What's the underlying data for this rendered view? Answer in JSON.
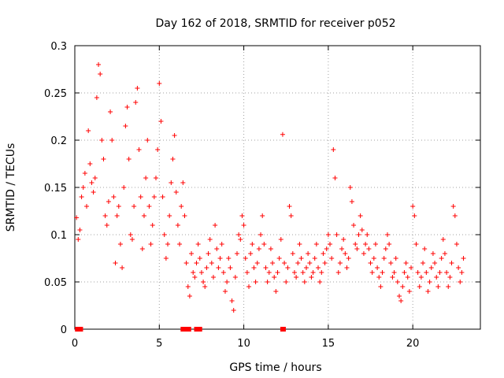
{
  "chart_data": {
    "type": "scatter",
    "title": "Day 162 of 2018, SRMTID for receiver p052",
    "xlabel": "GPS time / hours",
    "ylabel": "SRMTID / TECUs",
    "xlim": [
      0,
      24
    ],
    "ylim": [
      0,
      0.3
    ],
    "xticks": [
      0,
      5,
      10,
      15,
      20
    ],
    "yticks": [
      0,
      0.05,
      0.1,
      0.15,
      0.2,
      0.25,
      0.3
    ],
    "xtick_labels": [
      "0",
      "5",
      "10",
      "15",
      "20"
    ],
    "ytick_labels": [
      "0",
      "0.05",
      "0.1",
      "0.15",
      "0.2",
      "0.25",
      "0.3"
    ],
    "grid": true,
    "legend": "none",
    "marker": "plus",
    "color": "#ff0000",
    "series": [
      {
        "name": "SRMTID",
        "points": [
          [
            0.1,
            0.118
          ],
          [
            0.2,
            0.095
          ],
          [
            0.3,
            0.105
          ],
          [
            0.4,
            0.14
          ],
          [
            0.5,
            0.15
          ],
          [
            0.6,
            0.165
          ],
          [
            0.7,
            0.13
          ],
          [
            0.8,
            0.21
          ],
          [
            0.9,
            0.175
          ],
          [
            1.0,
            0.155
          ],
          [
            1.1,
            0.145
          ],
          [
            1.2,
            0.16
          ],
          [
            1.3,
            0.245
          ],
          [
            1.4,
            0.28
          ],
          [
            1.5,
            0.27
          ],
          [
            1.6,
            0.2
          ],
          [
            1.7,
            0.18
          ],
          [
            1.8,
            0.12
          ],
          [
            1.9,
            0.11
          ],
          [
            2.0,
            0.135
          ],
          [
            2.1,
            0.23
          ],
          [
            2.2,
            0.2
          ],
          [
            2.3,
            0.14
          ],
          [
            2.4,
            0.07
          ],
          [
            2.5,
            0.12
          ],
          [
            2.6,
            0.13
          ],
          [
            2.7,
            0.09
          ],
          [
            2.8,
            0.065
          ],
          [
            2.9,
            0.15
          ],
          [
            3.0,
            0.215
          ],
          [
            3.1,
            0.235
          ],
          [
            3.2,
            0.18
          ],
          [
            3.3,
            0.1
          ],
          [
            3.4,
            0.095
          ],
          [
            3.5,
            0.13
          ],
          [
            3.6,
            0.24
          ],
          [
            3.7,
            0.255
          ],
          [
            3.8,
            0.19
          ],
          [
            3.9,
            0.14
          ],
          [
            4.0,
            0.085
          ],
          [
            4.1,
            0.12
          ],
          [
            4.2,
            0.16
          ],
          [
            4.3,
            0.2
          ],
          [
            4.4,
            0.13
          ],
          [
            4.5,
            0.09
          ],
          [
            4.6,
            0.11
          ],
          [
            4.7,
            0.14
          ],
          [
            4.8,
            0.16
          ],
          [
            4.9,
            0.19
          ],
          [
            5.0,
            0.26
          ],
          [
            5.1,
            0.22
          ],
          [
            5.2,
            0.14
          ],
          [
            5.3,
            0.1
          ],
          [
            5.4,
            0.075
          ],
          [
            5.5,
            0.09
          ],
          [
            5.6,
            0.12
          ],
          [
            5.7,
            0.155
          ],
          [
            5.8,
            0.18
          ],
          [
            5.9,
            0.205
          ],
          [
            6.0,
            0.145
          ],
          [
            6.1,
            0.11
          ],
          [
            6.2,
            0.09
          ],
          [
            6.3,
            0.13
          ],
          [
            6.4,
            0.155
          ],
          [
            6.5,
            0.12
          ],
          [
            6.6,
            0.07
          ],
          [
            6.7,
            0.045
          ],
          [
            6.8,
            0.035
          ],
          [
            6.9,
            0.08
          ],
          [
            7.0,
            0.06
          ],
          [
            7.1,
            0.055
          ],
          [
            7.2,
            0.07
          ],
          [
            7.3,
            0.09
          ],
          [
            7.4,
            0.075
          ],
          [
            7.5,
            0.06
          ],
          [
            7.6,
            0.05
          ],
          [
            7.7,
            0.045
          ],
          [
            7.8,
            0.065
          ],
          [
            7.9,
            0.08
          ],
          [
            8.0,
            0.095
          ],
          [
            8.1,
            0.07
          ],
          [
            8.2,
            0.055
          ],
          [
            8.3,
            0.11
          ],
          [
            8.4,
            0.085
          ],
          [
            8.5,
            0.065
          ],
          [
            8.6,
            0.075
          ],
          [
            8.7,
            0.09
          ],
          [
            8.8,
            0.06
          ],
          [
            8.9,
            0.04
          ],
          [
            9.0,
            0.05
          ],
          [
            9.1,
            0.075
          ],
          [
            9.2,
            0.065
          ],
          [
            9.3,
            0.03
          ],
          [
            9.4,
            0.02
          ],
          [
            9.5,
            0.055
          ],
          [
            9.6,
            0.08
          ],
          [
            9.7,
            0.1
          ],
          [
            9.8,
            0.095
          ],
          [
            9.9,
            0.12
          ],
          [
            10.0,
            0.11
          ],
          [
            10.1,
            0.075
          ],
          [
            10.2,
            0.06
          ],
          [
            10.3,
            0.045
          ],
          [
            10.4,
            0.08
          ],
          [
            10.5,
            0.09
          ],
          [
            10.6,
            0.065
          ],
          [
            10.7,
            0.05
          ],
          [
            10.8,
            0.07
          ],
          [
            10.9,
            0.085
          ],
          [
            11.0,
            0.1
          ],
          [
            11.1,
            0.12
          ],
          [
            11.2,
            0.09
          ],
          [
            11.3,
            0.065
          ],
          [
            11.4,
            0.05
          ],
          [
            11.5,
            0.06
          ],
          [
            11.6,
            0.085
          ],
          [
            11.7,
            0.07
          ],
          [
            11.8,
            0.055
          ],
          [
            11.9,
            0.04
          ],
          [
            12.0,
            0.06
          ],
          [
            12.1,
            0.075
          ],
          [
            12.2,
            0.095
          ],
          [
            12.3,
            0.206
          ],
          [
            12.4,
            0.07
          ],
          [
            12.5,
            0.05
          ],
          [
            12.6,
            0.065
          ],
          [
            12.7,
            0.13
          ],
          [
            12.8,
            0.12
          ],
          [
            12.9,
            0.08
          ],
          [
            13.0,
            0.06
          ],
          [
            13.1,
            0.055
          ],
          [
            13.2,
            0.07
          ],
          [
            13.3,
            0.09
          ],
          [
            13.4,
            0.075
          ],
          [
            13.5,
            0.06
          ],
          [
            13.6,
            0.05
          ],
          [
            13.7,
            0.065
          ],
          [
            13.8,
            0.08
          ],
          [
            13.9,
            0.07
          ],
          [
            14.0,
            0.055
          ],
          [
            14.1,
            0.06
          ],
          [
            14.2,
            0.075
          ],
          [
            14.3,
            0.09
          ],
          [
            14.4,
            0.065
          ],
          [
            14.5,
            0.05
          ],
          [
            14.6,
            0.06
          ],
          [
            14.7,
            0.08
          ],
          [
            14.8,
            0.07
          ],
          [
            14.9,
            0.085
          ],
          [
            15.0,
            0.1
          ],
          [
            15.1,
            0.09
          ],
          [
            15.2,
            0.075
          ],
          [
            15.3,
            0.19
          ],
          [
            15.4,
            0.16
          ],
          [
            15.5,
            0.1
          ],
          [
            15.6,
            0.06
          ],
          [
            15.7,
            0.07
          ],
          [
            15.8,
            0.085
          ],
          [
            15.9,
            0.095
          ],
          [
            16.0,
            0.08
          ],
          [
            16.1,
            0.065
          ],
          [
            16.2,
            0.075
          ],
          [
            16.3,
            0.15
          ],
          [
            16.4,
            0.135
          ],
          [
            16.5,
            0.11
          ],
          [
            16.6,
            0.09
          ],
          [
            16.7,
            0.085
          ],
          [
            16.8,
            0.1
          ],
          [
            16.9,
            0.12
          ],
          [
            17.0,
            0.105
          ],
          [
            17.1,
            0.08
          ],
          [
            17.2,
            0.09
          ],
          [
            17.3,
            0.1
          ],
          [
            17.4,
            0.085
          ],
          [
            17.5,
            0.07
          ],
          [
            17.6,
            0.06
          ],
          [
            17.7,
            0.075
          ],
          [
            17.8,
            0.09
          ],
          [
            17.9,
            0.065
          ],
          [
            18.0,
            0.055
          ],
          [
            18.1,
            0.045
          ],
          [
            18.2,
            0.06
          ],
          [
            18.3,
            0.075
          ],
          [
            18.4,
            0.085
          ],
          [
            18.5,
            0.1
          ],
          [
            18.6,
            0.09
          ],
          [
            18.7,
            0.07
          ],
          [
            18.8,
            0.055
          ],
          [
            18.9,
            0.06
          ],
          [
            19.0,
            0.075
          ],
          [
            19.1,
            0.05
          ],
          [
            19.2,
            0.035
          ],
          [
            19.3,
            0.03
          ],
          [
            19.4,
            0.045
          ],
          [
            19.5,
            0.06
          ],
          [
            19.6,
            0.07
          ],
          [
            19.7,
            0.055
          ],
          [
            19.8,
            0.04
          ],
          [
            19.9,
            0.065
          ],
          [
            20.0,
            0.13
          ],
          [
            20.1,
            0.12
          ],
          [
            20.2,
            0.09
          ],
          [
            20.3,
            0.06
          ],
          [
            20.4,
            0.045
          ],
          [
            20.5,
            0.055
          ],
          [
            20.6,
            0.07
          ],
          [
            20.7,
            0.085
          ],
          [
            20.8,
            0.06
          ],
          [
            20.9,
            0.04
          ],
          [
            21.0,
            0.05
          ],
          [
            21.1,
            0.065
          ],
          [
            21.2,
            0.08
          ],
          [
            21.3,
            0.07
          ],
          [
            21.4,
            0.055
          ],
          [
            21.5,
            0.045
          ],
          [
            21.6,
            0.06
          ],
          [
            21.7,
            0.075
          ],
          [
            21.8,
            0.095
          ],
          [
            21.9,
            0.08
          ],
          [
            22.0,
            0.06
          ],
          [
            22.1,
            0.045
          ],
          [
            22.2,
            0.055
          ],
          [
            22.3,
            0.07
          ],
          [
            22.4,
            0.13
          ],
          [
            22.5,
            0.12
          ],
          [
            22.6,
            0.09
          ],
          [
            22.7,
            0.065
          ],
          [
            22.8,
            0.05
          ],
          [
            22.9,
            0.06
          ],
          [
            23.0,
            0.075
          ]
        ]
      }
    ],
    "zero_markers": [
      0.15,
      0.3,
      6.4,
      6.7,
      7.2,
      7.35,
      12.3
    ]
  }
}
